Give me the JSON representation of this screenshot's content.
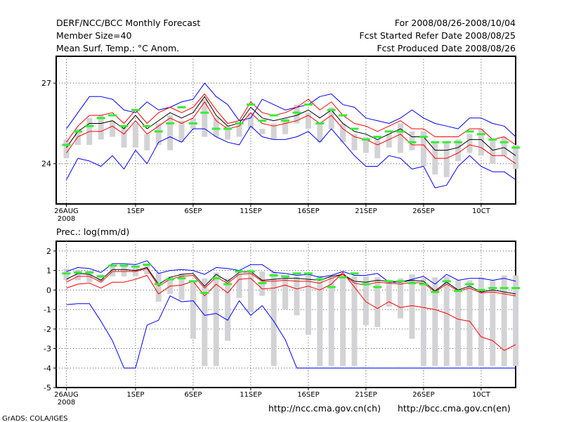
{
  "header": {
    "title_left": "DERF/NCC/BCC Monthly Forecast",
    "member_size": "Member Size=40",
    "variable": "Mean Surf. Temp.: °C Anom.",
    "title_right": "For 2008/08/26-2008/10/04",
    "started_date": "Fcst Started Refer Date 2008/08/25",
    "produced_date": "Fcst Produced Date 2008/08/26"
  },
  "footer": {
    "credit": "GrADS: COLA/IGES",
    "url_ch": "http://ncc.cma.gov.cn(ch)",
    "url_en": "http://bcc.cma.gov.cn(en)"
  },
  "chart_data": [
    {
      "type": "line",
      "title": "Mean Surf. Temp.: °C Anom.",
      "xlabel": "",
      "ylabel": "",
      "ylim": [
        22.5,
        28
      ],
      "yticks": [
        24,
        27
      ],
      "x": [
        1,
        2,
        3,
        4,
        5,
        6,
        7,
        8,
        9,
        10,
        11,
        12,
        13,
        14,
        15,
        16,
        17,
        18,
        19,
        20,
        21,
        22,
        23,
        24,
        25,
        26,
        27,
        28,
        29,
        30,
        31,
        32,
        33,
        34,
        35,
        36,
        37,
        38,
        39,
        40
      ],
      "xtick_labels": [
        {
          "day": 1,
          "label": "26AUG",
          "sub": "2008"
        },
        {
          "day": 7,
          "label": "1SEP"
        },
        {
          "day": 12,
          "label": "6SEP"
        },
        {
          "day": 17,
          "label": "11SEP"
        },
        {
          "day": 22,
          "label": "16SEP"
        },
        {
          "day": 27,
          "label": "21SEP"
        },
        {
          "day": 32,
          "label": "26SEP"
        },
        {
          "day": 37,
          "label": "10CT"
        }
      ],
      "series": [
        {
          "name": "max",
          "color": "#0000ff",
          "values": [
            25.3,
            25.9,
            26.5,
            26.5,
            26.4,
            26.0,
            25.9,
            26.3,
            26.0,
            26.1,
            26.3,
            26.4,
            27.0,
            26.5,
            26.2,
            25.6,
            25.7,
            26.4,
            26.2,
            26.0,
            26.1,
            26.2,
            26.5,
            26.6,
            26.2,
            26.1,
            25.7,
            25.6,
            25.5,
            25.7,
            26.0,
            25.7,
            25.5,
            25.4,
            25.3,
            25.7,
            25.7,
            25.5,
            25.4,
            25.0
          ]
        },
        {
          "name": "upper",
          "color": "#ff0000",
          "values": [
            24.8,
            25.4,
            25.8,
            25.8,
            25.9,
            25.5,
            26.0,
            25.5,
            25.9,
            26.1,
            25.9,
            26.1,
            26.6,
            26.0,
            25.5,
            25.6,
            26.3,
            25.9,
            25.8,
            25.9,
            26.1,
            26.4,
            26.0,
            26.3,
            25.8,
            25.5,
            25.4,
            25.2,
            25.4,
            25.6,
            25.3,
            25.3,
            25.0,
            25.0,
            25.0,
            25.3,
            25.3,
            24.9,
            25.0,
            24.7
          ]
        },
        {
          "name": "mean",
          "color": "#000000",
          "values": [
            24.6,
            25.2,
            25.5,
            25.5,
            25.6,
            25.3,
            25.8,
            25.3,
            25.6,
            25.9,
            25.7,
            25.9,
            26.5,
            25.8,
            25.4,
            25.5,
            26.1,
            25.7,
            25.6,
            25.7,
            25.8,
            26.0,
            25.7,
            26.0,
            25.5,
            25.2,
            25.1,
            24.9,
            25.1,
            25.3,
            25.0,
            25.0,
            24.5,
            24.5,
            24.6,
            24.9,
            24.9,
            24.5,
            24.6,
            24.3
          ]
        },
        {
          "name": "lower",
          "color": "#ff0000",
          "values": [
            24.4,
            25.0,
            25.2,
            25.2,
            25.4,
            25.1,
            25.6,
            25.1,
            25.4,
            25.7,
            25.5,
            25.7,
            26.3,
            25.6,
            25.3,
            25.4,
            25.9,
            25.5,
            25.4,
            25.5,
            25.6,
            25.8,
            25.5,
            25.8,
            25.3,
            25.0,
            24.9,
            24.7,
            24.9,
            25.1,
            24.7,
            24.7,
            24.2,
            24.2,
            24.4,
            24.7,
            24.6,
            24.3,
            24.3,
            24.0
          ]
        },
        {
          "name": "min",
          "color": "#0000ff",
          "values": [
            23.4,
            24.2,
            24.1,
            23.9,
            24.3,
            23.8,
            24.5,
            24.0,
            24.8,
            25.0,
            24.8,
            25.3,
            25.3,
            25.0,
            24.8,
            24.7,
            25.4,
            25.0,
            24.9,
            24.9,
            25.0,
            25.2,
            24.8,
            25.3,
            24.8,
            24.3,
            23.9,
            23.9,
            24.3,
            24.2,
            23.8,
            23.9,
            23.1,
            23.2,
            23.9,
            24.3,
            23.9,
            23.7,
            23.7,
            23.4
          ]
        },
        {
          "name": "ensemble-box-upper",
          "color": "#d3d3d6",
          "values": [
            24.9,
            25.3,
            25.7,
            25.8,
            25.6,
            25.4,
            25.5,
            25.1,
            25.5,
            25.8,
            25.6,
            25.7,
            26.4,
            25.7,
            25.4,
            25.5,
            25.9,
            25.3,
            25.5,
            25.7,
            26.2,
            25.9,
            25.5,
            26.1,
            25.5,
            25.1,
            25.0,
            24.9,
            25.1,
            25.5,
            25.2,
            25.2,
            24.8,
            24.8,
            24.9,
            25.1,
            25.3,
            24.9,
            25.0,
            24.7
          ]
        },
        {
          "name": "ensemble-box-lower",
          "color": "#d3d3d6",
          "values": [
            24.2,
            24.7,
            24.7,
            24.9,
            25.0,
            24.6,
            24.6,
            24.5,
            24.7,
            24.5,
            24.8,
            25.3,
            25.0,
            25.0,
            24.9,
            25.0,
            25.3,
            25.1,
            24.9,
            25.1,
            25.5,
            25.3,
            24.8,
            25.3,
            24.8,
            24.5,
            24.4,
            24.2,
            24.6,
            24.4,
            24.5,
            23.9,
            23.6,
            23.5,
            24.1,
            24.4,
            24.3,
            24.0,
            24.3,
            23.8
          ]
        },
        {
          "name": "ensemble-mark",
          "color": "#33ee33",
          "values": [
            24.7,
            25.2,
            25.4,
            25.7,
            25.8,
            25.4,
            26.0,
            25.4,
            25.2,
            25.5,
            26.1,
            25.5,
            25.9,
            25.3,
            25.3,
            25.5,
            26.2,
            25.6,
            25.8,
            25.6,
            25.9,
            26.2,
            25.5,
            26.0,
            25.8,
            25.3,
            24.9,
            25.0,
            25.2,
            25.2,
            24.8,
            25.0,
            24.8,
            24.8,
            24.8,
            25.2,
            25.1,
            24.9,
            24.8,
            24.6
          ]
        }
      ]
    },
    {
      "type": "line",
      "title": "Prec.: log(mm/d)",
      "xlabel": "",
      "ylabel": "",
      "ylim": [
        -5,
        2.5
      ],
      "yticks": [
        -5,
        -4,
        -3,
        -2,
        -1,
        0,
        1,
        2
      ],
      "x": [
        1,
        2,
        3,
        4,
        5,
        6,
        7,
        8,
        9,
        10,
        11,
        12,
        13,
        14,
        15,
        16,
        17,
        18,
        19,
        20,
        21,
        22,
        23,
        24,
        25,
        26,
        27,
        28,
        29,
        30,
        31,
        32,
        33,
        34,
        35,
        36,
        37,
        38,
        39,
        40
      ],
      "xtick_labels": [
        {
          "day": 1,
          "label": "26AUG",
          "sub": "2008"
        },
        {
          "day": 7,
          "label": "1SEP"
        },
        {
          "day": 12,
          "label": "6SEP"
        },
        {
          "day": 17,
          "label": "11SEP"
        },
        {
          "day": 22,
          "label": "16SEP"
        },
        {
          "day": 27,
          "label": "21SEP"
        },
        {
          "day": 32,
          "label": "26SEP"
        },
        {
          "day": 37,
          "label": "10CT"
        }
      ],
      "series": [
        {
          "name": "max",
          "color": "#0000ff",
          "values": [
            0.95,
            1.15,
            1.1,
            0.9,
            1.35,
            1.35,
            1.3,
            1.5,
            0.85,
            1.0,
            1.05,
            1.0,
            0.8,
            1.15,
            1.1,
            1.0,
            1.3,
            1.3,
            0.9,
            0.85,
            0.75,
            0.8,
            0.65,
            0.75,
            0.95,
            0.75,
            0.75,
            0.85,
            0.4,
            0.4,
            0.55,
            0.7,
            0.3,
            0.8,
            0.5,
            0.6,
            0.6,
            0.5,
            0.6,
            0.45
          ]
        },
        {
          "name": "upper",
          "color": "#000000",
          "values": [
            0.55,
            0.85,
            0.8,
            0.5,
            1.05,
            1.05,
            1.0,
            1.15,
            0.3,
            0.65,
            0.8,
            0.85,
            0.2,
            0.8,
            0.45,
            0.9,
            0.95,
            0.5,
            0.55,
            0.6,
            0.6,
            0.55,
            0.5,
            0.7,
            0.8,
            0.45,
            0.4,
            0.5,
            0.45,
            0.4,
            0.5,
            0.45,
            -0.05,
            0.4,
            0.0,
            0.2,
            -0.1,
            0.0,
            -0.1,
            -0.2
          ]
        },
        {
          "name": "mean",
          "color": "#ff0000",
          "values": [
            0.4,
            0.7,
            0.7,
            0.4,
            0.95,
            0.95,
            0.95,
            1.1,
            0.2,
            0.55,
            0.7,
            0.75,
            0.1,
            0.65,
            0.35,
            0.8,
            0.85,
            0.45,
            0.45,
            0.5,
            0.45,
            0.45,
            0.35,
            0.6,
            0.8,
            0.35,
            0.25,
            0.4,
            0.35,
            0.3,
            0.4,
            0.35,
            -0.1,
            0.3,
            -0.05,
            0.1,
            -0.15,
            -0.1,
            -0.2,
            -0.3
          ]
        },
        {
          "name": "lower",
          "color": "#ff0000",
          "values": [
            0.1,
            0.3,
            0.35,
            0.1,
            0.4,
            0.4,
            0.55,
            0.75,
            -0.2,
            0.2,
            0.25,
            0.45,
            -0.3,
            0.3,
            -0.15,
            0.55,
            0.6,
            0.05,
            0.1,
            0.25,
            0.05,
            0.2,
            0.0,
            0.3,
            0.9,
            0.15,
            -0.6,
            -0.95,
            -0.6,
            -0.9,
            -0.8,
            -0.9,
            -1.0,
            -1.2,
            -1.5,
            -1.6,
            -2.4,
            -2.6,
            -3.1,
            -2.8
          ]
        },
        {
          "name": "min",
          "color": "#0000ff",
          "values": [
            -0.75,
            -0.7,
            -0.7,
            -1.6,
            -2.6,
            -4.0,
            -4.0,
            -1.8,
            -1.55,
            -0.3,
            -0.6,
            -0.55,
            -1.3,
            -1.2,
            -1.55,
            -0.55,
            -1.3,
            -0.8,
            -1.6,
            -2.55,
            -4.0,
            -4.0,
            -4.0,
            -4.0,
            -4.0,
            -4.0,
            -4.0,
            -4.0,
            -4.0,
            -4.0,
            -4.0,
            -4.0,
            -4.0,
            -4.0,
            -4.0,
            -4.0,
            -4.0,
            -4.0,
            -4.0,
            -4.0
          ]
        },
        {
          "name": "ensemble-box-upper",
          "color": "#d3d3d6",
          "values": [
            1.1,
            1.05,
            1.0,
            0.8,
            1.2,
            1.2,
            1.15,
            1.3,
            0.9,
            0.7,
            0.85,
            0.5,
            0.6,
            0.9,
            0.6,
            0.85,
            1.05,
            0.95,
            0.95,
            0.75,
            0.7,
            0.75,
            0.75,
            0.65,
            0.8,
            0.7,
            0.7,
            0.65,
            0.5,
            0.6,
            0.8,
            0.6,
            0.65,
            0.7,
            0.5,
            0.5,
            0.65,
            0.5,
            0.75,
            0.75
          ]
        },
        {
          "name": "ensemble-box-lower",
          "color": "#d3d3d6",
          "values": [
            0.5,
            0.5,
            0.4,
            0.4,
            0.7,
            0.7,
            0.7,
            0.8,
            -0.6,
            -0.2,
            -0.5,
            -2.5,
            -3.9,
            -3.9,
            -2.6,
            -0.4,
            -1.15,
            -0.3,
            -3.9,
            -1.0,
            -1.3,
            -2.3,
            -3.9,
            -3.9,
            -3.9,
            -3.9,
            -1.8,
            -1.9,
            -0.85,
            -1.45,
            -2.5,
            -3.9,
            -3.9,
            -3.9,
            -3.9,
            -3.9,
            -3.9,
            -3.9,
            -3.9,
            -3.9
          ]
        },
        {
          "name": "ensemble-mark",
          "color": "#33ee33",
          "values": [
            0.85,
            0.9,
            0.9,
            0.7,
            1.25,
            1.25,
            1.2,
            1.3,
            0.3,
            0.55,
            0.6,
            0.45,
            -0.15,
            0.6,
            0.3,
            0.95,
            0.95,
            0.35,
            0.75,
            0.7,
            0.85,
            0.85,
            0.55,
            0.15,
            0.65,
            0.85,
            0.3,
            0.15,
            0.45,
            0.45,
            0.35,
            0.3,
            -0.1,
            0.45,
            -0.05,
            0.3,
            0.0,
            0.1,
            0.1,
            0.1
          ]
        }
      ]
    }
  ]
}
